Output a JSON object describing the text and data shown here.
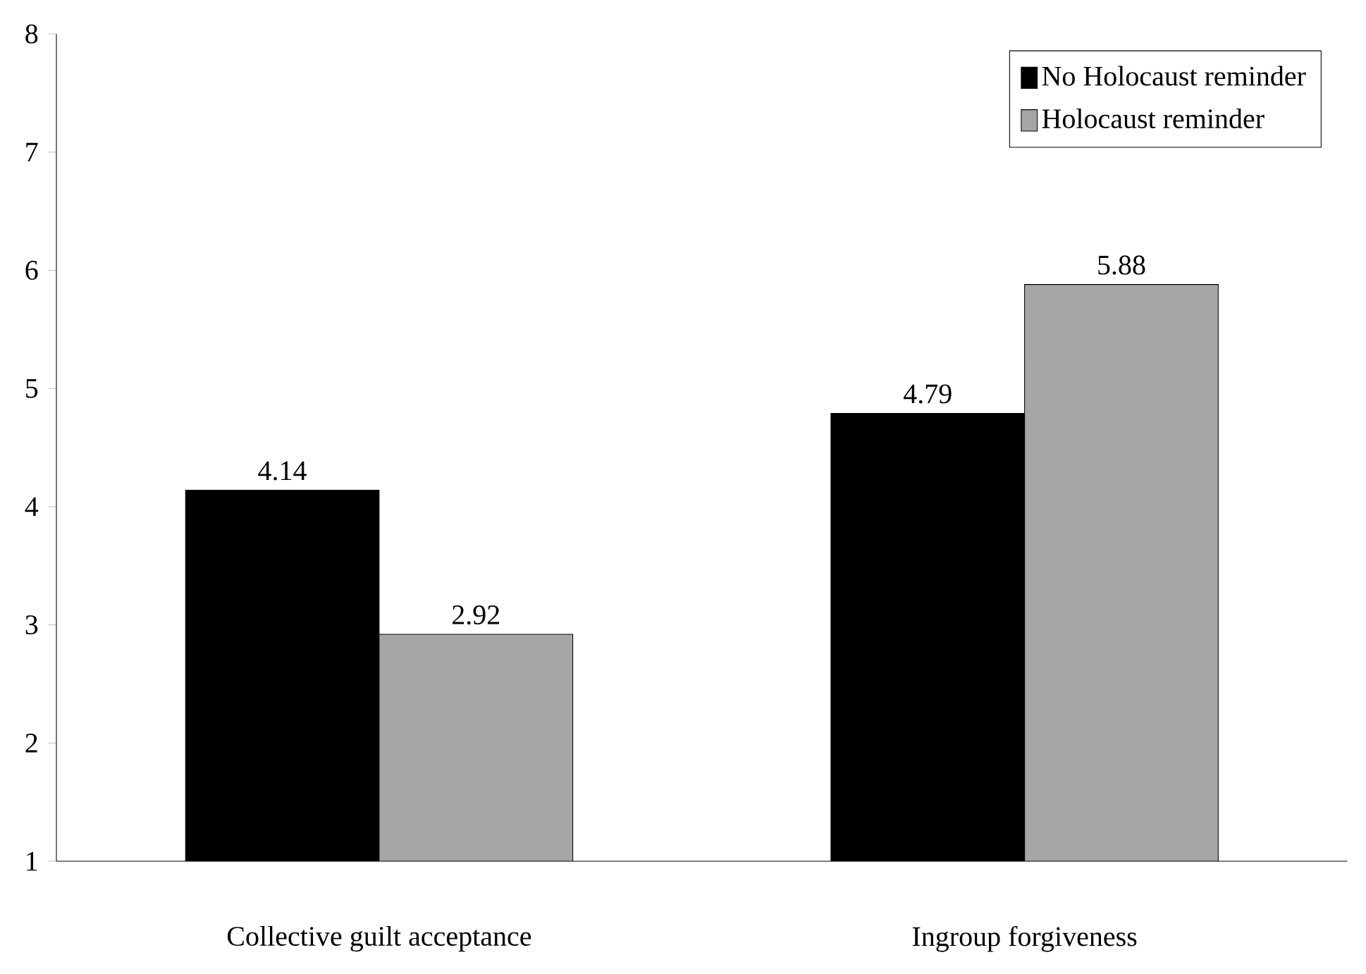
{
  "chart_data": {
    "type": "bar",
    "categories": [
      "Collective guilt acceptance",
      "Ingroup forgiveness"
    ],
    "series": [
      {
        "name": "No Holocaust reminder",
        "color": "#000000",
        "values": [
          4.14,
          4.79
        ]
      },
      {
        "name": "Holocaust reminder",
        "color": "#a6a6a6",
        "values": [
          2.92,
          5.88
        ]
      }
    ],
    "ylim": [
      1,
      8
    ],
    "yticks": [
      1,
      2,
      3,
      4,
      5,
      6,
      7,
      8
    ],
    "data_labels": true,
    "legend": "top right",
    "grid": false
  }
}
